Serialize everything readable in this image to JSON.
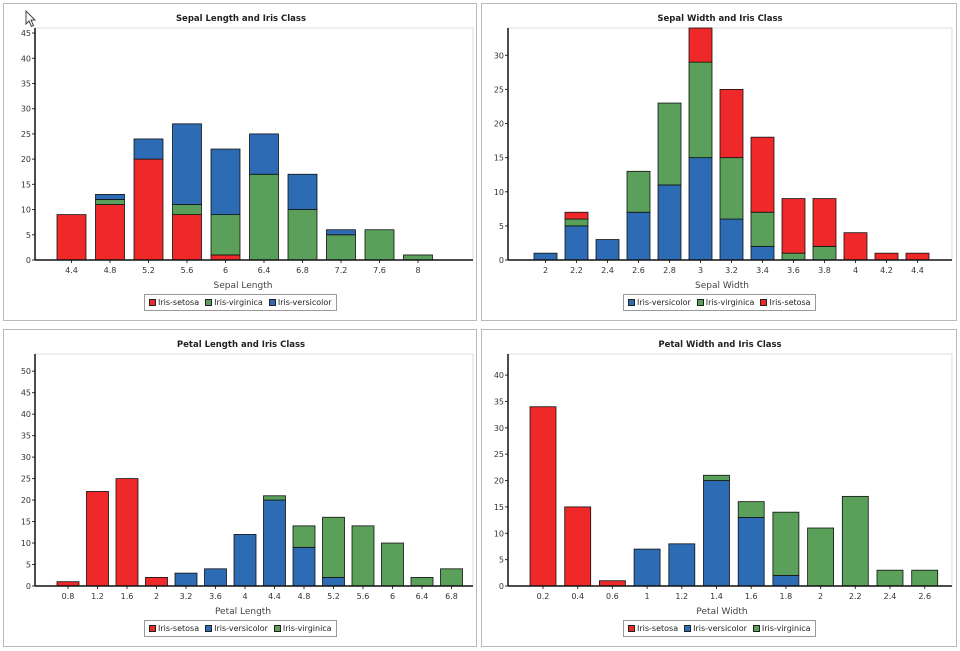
{
  "colors": {
    "Iris-setosa": "#ef2929",
    "Iris-virginica": "#5a9f5a",
    "Iris-versicolor": "#2d6bb5"
  },
  "chart_data": [
    {
      "type": "bar",
      "stacked": true,
      "title": "Sepal Length and Iris Class",
      "xlabel": "Sepal Length",
      "ylabel": "",
      "ylim": [
        0,
        46
      ],
      "yticks": [
        0,
        5,
        10,
        15,
        20,
        25,
        30,
        35,
        40,
        45
      ],
      "categories": [
        "4.4",
        "4.8",
        "5.2",
        "5.6",
        "6",
        "6.4",
        "6.8",
        "7.2",
        "7.6",
        "8"
      ],
      "series": [
        {
          "name": "Iris-setosa",
          "values": [
            9,
            11,
            20,
            9,
            1,
            0,
            0,
            0,
            0,
            0
          ]
        },
        {
          "name": "Iris-virginica",
          "values": [
            0,
            1,
            0,
            2,
            8,
            17,
            10,
            5,
            6,
            1
          ]
        },
        {
          "name": "Iris-versicolor",
          "values": [
            0,
            1,
            4,
            16,
            13,
            8,
            7,
            1,
            0,
            0
          ]
        }
      ],
      "legend": [
        "Iris-setosa",
        "Iris-virginica",
        "Iris-versicolor"
      ]
    },
    {
      "type": "bar",
      "stacked": true,
      "title": "Sepal Width and Iris Class",
      "xlabel": "Sepal Width",
      "ylabel": "",
      "ylim": [
        0,
        34
      ],
      "yticks": [
        0,
        5,
        10,
        15,
        20,
        25,
        30
      ],
      "categories": [
        "2",
        "2.2",
        "2.4",
        "2.6",
        "2.8",
        "3",
        "3.2",
        "3.4",
        "3.6",
        "3.8",
        "4",
        "4.2",
        "4.4"
      ],
      "series": [
        {
          "name": "Iris-versicolor",
          "values": [
            1,
            5,
            3,
            7,
            11,
            15,
            6,
            2,
            0,
            0,
            0,
            0,
            0
          ]
        },
        {
          "name": "Iris-virginica",
          "values": [
            0,
            1,
            0,
            6,
            12,
            14,
            9,
            5,
            1,
            2,
            0,
            0,
            0
          ]
        },
        {
          "name": "Iris-setosa",
          "values": [
            0,
            1,
            0,
            0,
            0,
            5,
            10,
            11,
            8,
            7,
            4,
            1,
            1
          ]
        }
      ],
      "legend": [
        "Iris-versicolor",
        "Iris-virginica",
        "Iris-setosa"
      ]
    },
    {
      "type": "bar",
      "stacked": true,
      "title": "Petal Length and Iris Class",
      "xlabel": "Petal Length",
      "ylabel": "",
      "ylim": [
        0,
        54
      ],
      "yticks": [
        0,
        5,
        10,
        15,
        20,
        25,
        30,
        35,
        40,
        45,
        50
      ],
      "categories": [
        "0.8",
        "1.2",
        "1.6",
        "2",
        "3.2",
        "3.6",
        "4",
        "4.4",
        "4.8",
        "5.2",
        "5.6",
        "6",
        "6.4",
        "6.8"
      ],
      "series": [
        {
          "name": "Iris-setosa",
          "values": [
            1,
            22,
            25,
            2,
            0,
            0,
            0,
            0,
            0,
            0,
            0,
            0,
            0,
            0
          ]
        },
        {
          "name": "Iris-versicolor",
          "values": [
            0,
            0,
            0,
            0,
            3,
            4,
            12,
            20,
            9,
            2,
            0,
            0,
            0,
            0
          ]
        },
        {
          "name": "Iris-virginica",
          "values": [
            0,
            0,
            0,
            0,
            0,
            0,
            0,
            1,
            5,
            14,
            14,
            10,
            2,
            4
          ]
        }
      ],
      "legend": [
        "Iris-setosa",
        "Iris-versicolor",
        "Iris-virginica"
      ]
    },
    {
      "type": "bar",
      "stacked": true,
      "title": "Petal Width and Iris Class",
      "xlabel": "Petal Width",
      "ylabel": "",
      "ylim": [
        0,
        44
      ],
      "yticks": [
        0,
        5,
        10,
        15,
        20,
        25,
        30,
        35,
        40
      ],
      "categories": [
        "0.2",
        "0.4",
        "0.6",
        "1",
        "1.2",
        "1.4",
        "1.6",
        "1.8",
        "2",
        "2.2",
        "2.4",
        "2.6"
      ],
      "series": [
        {
          "name": "Iris-setosa",
          "values": [
            34,
            15,
            1,
            0,
            0,
            0,
            0,
            0,
            0,
            0,
            0,
            0
          ]
        },
        {
          "name": "Iris-versicolor",
          "values": [
            0,
            0,
            0,
            7,
            8,
            20,
            13,
            2,
            0,
            0,
            0,
            0
          ]
        },
        {
          "name": "Iris-virginica",
          "values": [
            0,
            0,
            0,
            0,
            0,
            1,
            3,
            12,
            11,
            17,
            3,
            3
          ]
        }
      ],
      "legend": [
        "Iris-setosa",
        "Iris-versicolor",
        "Iris-virginica"
      ]
    }
  ]
}
